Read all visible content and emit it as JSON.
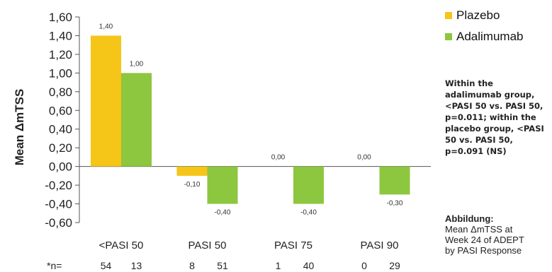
{
  "chart_data": {
    "type": "bar",
    "categories": [
      "<PASI 50",
      "PASI 50",
      "PASI 75",
      "PASI 90"
    ],
    "series": [
      {
        "name": "Plazebo",
        "color": "#f5c518",
        "values": [
          1.4,
          -0.1,
          0.0,
          0.0
        ],
        "labels": [
          "1,40",
          "-0,10",
          "0,00",
          "0,00"
        ]
      },
      {
        "name": "Adalimumab",
        "color": "#8dc63f",
        "values": [
          1.0,
          -0.4,
          -0.4,
          -0.3
        ],
        "labels": [
          "1,00",
          "-0,40",
          "-0,40",
          "-0,30"
        ]
      }
    ],
    "ylabel": "Mean ΔmTSS",
    "ylim": [
      -0.6,
      1.6
    ],
    "yticks": [
      "1,60",
      "1,40",
      "1,20",
      "1,00",
      "0,80",
      "0,60",
      "0,40",
      "0,20",
      "0,00",
      "-0,20",
      "-0,40",
      "-0,60"
    ],
    "grid": false,
    "legend_position": "right",
    "n_label": "*n=",
    "n_values": [
      [
        "54",
        "13"
      ],
      [
        "8",
        "51"
      ],
      [
        "1",
        "40"
      ],
      [
        "0",
        "29"
      ]
    ]
  },
  "note": "Within the adalimumab group, <PASI 50 vs. PASI 50, p=0.011; within the placebo group, <PASI 50 vs. PASI 50, p=0.091 (NS)",
  "caption": {
    "title": "Abbildung:",
    "lines": [
      "Mean ΔmTSS at",
      "Week 24 of ADEPT",
      "by PASI Response"
    ]
  }
}
